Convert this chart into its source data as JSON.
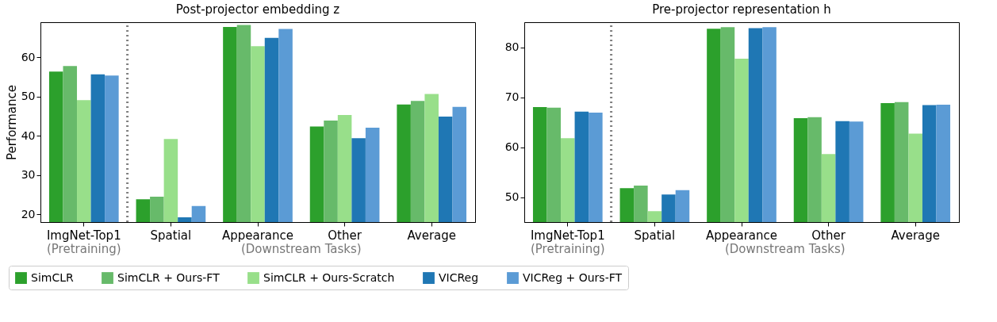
{
  "chart_data": [
    {
      "type": "bar",
      "title": "Post-projector embedding z",
      "ylabel": "Performance",
      "categories": [
        "ImgNet-Top1",
        "Spatial",
        "Appearance",
        "Other",
        "Average"
      ],
      "ylim": [
        18,
        69
      ],
      "yticks": [
        20,
        30,
        40,
        50,
        60
      ],
      "legend": "bottom",
      "series": [
        {
          "name": "SimCLR",
          "color": "#2ca02c",
          "values": [
            56.4,
            23.8,
            67.8,
            42.4,
            48.0
          ]
        },
        {
          "name": "SimCLR + Ours-FT",
          "color": "#67ba6a",
          "values": [
            57.8,
            24.5,
            68.3,
            43.9,
            48.9
          ]
        },
        {
          "name": "SimCLR + Ours-Scratch",
          "color": "#98df8a",
          "values": [
            49.1,
            39.2,
            62.9,
            45.3,
            50.7
          ]
        },
        {
          "name": "VICReg",
          "color": "#1f77b4",
          "values": [
            55.7,
            19.2,
            65.0,
            39.4,
            44.9
          ]
        },
        {
          "name": "VICReg + Ours-FT",
          "color": "#5b9bd5",
          "values": [
            55.4,
            22.1,
            67.3,
            42.1,
            47.4
          ]
        }
      ],
      "annotations": [
        "(Pretraining)",
        "(Downstream Tasks)"
      ]
    },
    {
      "type": "bar",
      "title": "Pre-projector representation h",
      "categories": [
        "ImgNet-Top1",
        "Spatial",
        "Appearance",
        "Other",
        "Average"
      ],
      "ylim": [
        45,
        85
      ],
      "yticks": [
        50,
        60,
        70,
        80
      ],
      "series": [
        {
          "color": "#2ca02c",
          "values": [
            68.0,
            51.8,
            83.7,
            65.8,
            68.8
          ]
        },
        {
          "color": "#67ba6a",
          "values": [
            67.9,
            52.3,
            84.0,
            66.0,
            69.0
          ]
        },
        {
          "color": "#98df8a",
          "values": [
            61.8,
            47.2,
            77.7,
            58.6,
            62.7
          ]
        },
        {
          "color": "#1f77b4",
          "values": [
            67.1,
            50.5,
            83.8,
            65.2,
            68.4
          ]
        },
        {
          "color": "#5b9bd5",
          "values": [
            66.9,
            51.4,
            84.0,
            65.1,
            68.5
          ]
        }
      ],
      "annotations": [
        "(Pretraining)",
        "(Downstream Tasks)"
      ]
    }
  ]
}
